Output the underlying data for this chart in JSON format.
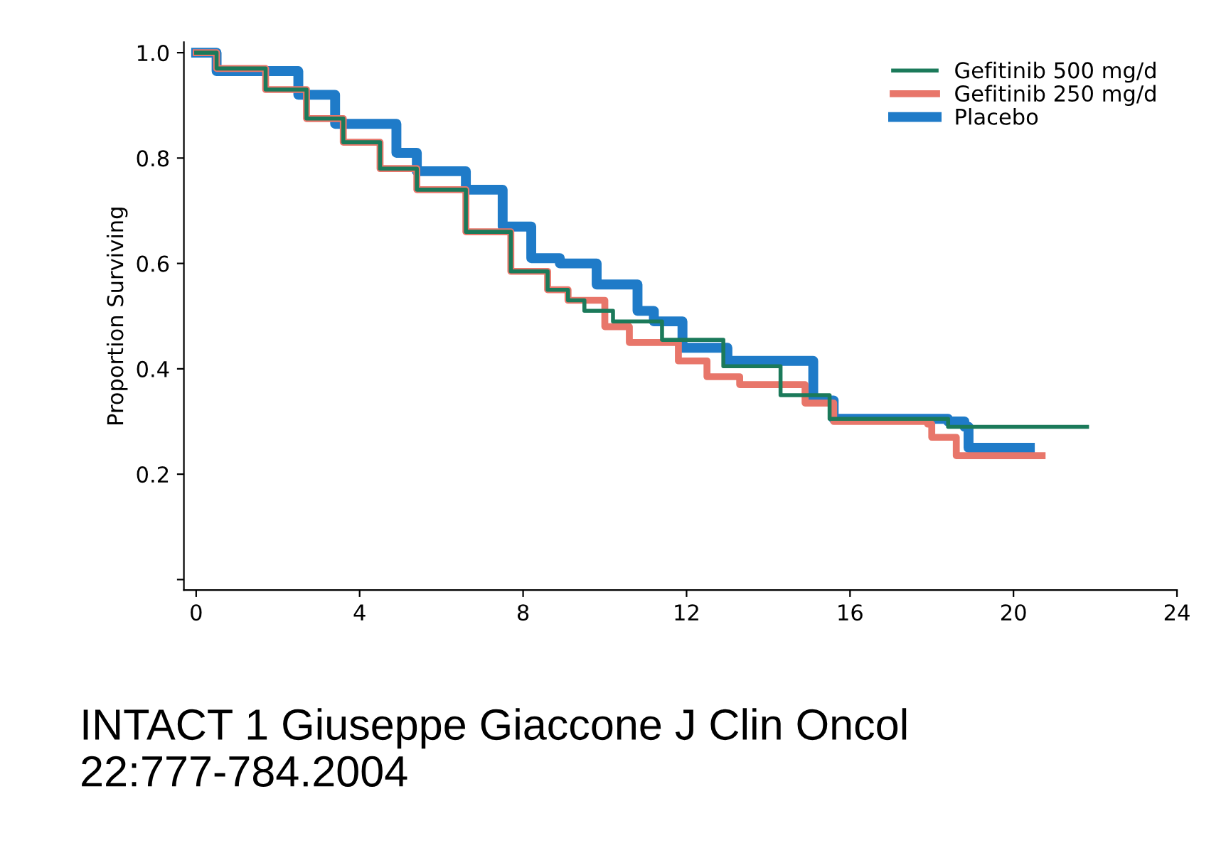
{
  "chart_data": {
    "type": "step",
    "ylabel": "Proportion Surviving",
    "xlim": [
      -0.3,
      24
    ],
    "xticks": [
      0,
      4,
      8,
      12,
      16,
      20,
      24
    ],
    "ylim": [
      -0.02,
      1.02
    ],
    "yticks": [
      {
        "value": 0,
        "label": null
      },
      0.2,
      0.4,
      0.6,
      0.8,
      {
        "value": 1,
        "label": "1.0"
      }
    ],
    "legend": "top right",
    "grid": false,
    "annotations": [
      "INTACT 1 Giuseppe Giaccone J Clin Oncol 22:777-784.2004"
    ],
    "series": [
      {
        "name": "Gefitinib 500 mg/d",
        "color": "#1b7a5a",
        "x": [
          0,
          0.5,
          1.7,
          2.7,
          3.6,
          4.5,
          5.4,
          6.6,
          7.7,
          8.6,
          9.1,
          9.5,
          10.2,
          11.4,
          12.9,
          14.3,
          15.5,
          18.4,
          21.8
        ],
        "values": [
          1.0,
          0.97,
          0.93,
          0.875,
          0.83,
          0.78,
          0.74,
          0.66,
          0.585,
          0.55,
          0.53,
          0.51,
          0.49,
          0.455,
          0.405,
          0.35,
          0.305,
          0.29,
          0.29
        ]
      },
      {
        "name": "Gefitinib 250 mg/d",
        "color": "#e8766a",
        "x": [
          0,
          0.5,
          1.7,
          2.7,
          3.6,
          4.5,
          5.4,
          6.6,
          7.7,
          8.6,
          9.1,
          10.0,
          10.6,
          11.8,
          12.5,
          13.3,
          14.9,
          15.6,
          17.9,
          18.0,
          18.6,
          20.7
        ],
        "values": [
          1.0,
          0.97,
          0.93,
          0.875,
          0.83,
          0.78,
          0.74,
          0.66,
          0.585,
          0.55,
          0.53,
          0.48,
          0.45,
          0.415,
          0.385,
          0.37,
          0.335,
          0.3,
          0.295,
          0.27,
          0.235,
          0.235
        ]
      },
      {
        "name": "Placebo",
        "color": "#1f7bc8",
        "x": [
          0,
          0.5,
          2.5,
          3.4,
          4.9,
          5.4,
          6.6,
          7.5,
          8.2,
          8.9,
          9.8,
          10.8,
          11.2,
          11.9,
          13.0,
          15.1,
          15.6,
          18.4,
          18.8,
          18.9,
          20.4
        ],
        "values": [
          1.0,
          0.965,
          0.92,
          0.865,
          0.81,
          0.775,
          0.74,
          0.67,
          0.61,
          0.6,
          0.56,
          0.51,
          0.49,
          0.44,
          0.415,
          0.34,
          0.305,
          0.3,
          0.29,
          0.25,
          0.25
        ]
      }
    ]
  }
}
